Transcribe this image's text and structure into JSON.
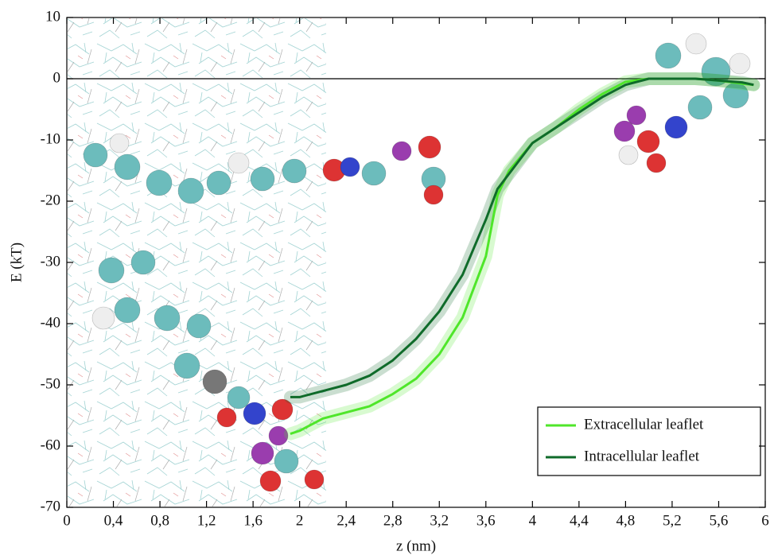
{
  "chart_data": {
    "type": "line",
    "x_label": "z (nm)",
    "y_label": "E (kT)",
    "x": [
      1.92,
      2.0,
      2.2,
      2.4,
      2.6,
      2.8,
      3.0,
      3.2,
      3.4,
      3.6,
      3.7,
      3.8,
      4.0,
      4.2,
      4.4,
      4.6,
      4.8,
      5.0,
      5.2,
      5.4,
      5.6,
      5.8,
      5.9
    ],
    "series": [
      {
        "name": "Extracellular leaflet",
        "color": "#4fe62a",
        "values": [
          -58,
          -57.5,
          -55.5,
          -54.5,
          -53.5,
          -51.5,
          -49,
          -45,
          -39,
          -29,
          -19,
          -15,
          -10.5,
          -8,
          -5,
          -2.5,
          -0.5,
          0,
          0,
          0,
          -0.3,
          -0.8,
          -1
        ]
      },
      {
        "name": "Intracellular leaflet",
        "color": "#0f6b2a",
        "values": [
          -52,
          -52,
          -51,
          -50,
          -48.5,
          -46,
          -42.5,
          -38,
          -32,
          -23,
          -18,
          -15.5,
          -10.5,
          -8,
          -5.5,
          -3,
          -1,
          0,
          0,
          0,
          -0.3,
          -0.6,
          -1
        ]
      }
    ],
    "reference_line": 0,
    "xlim": [
      0,
      6
    ],
    "xticks": [
      0,
      {
        "value": 0.4,
        "label": "0,4"
      },
      {
        "value": 0.8,
        "label": "0,8"
      },
      {
        "value": 1.2,
        "label": "1,2"
      },
      {
        "value": 1.6,
        "label": "1,6"
      },
      2,
      {
        "value": 2.4,
        "label": "2,4"
      },
      {
        "value": 2.8,
        "label": "2,8"
      },
      {
        "value": 3.2,
        "label": "3,2"
      },
      {
        "value": 3.6,
        "label": "3,6"
      },
      4,
      {
        "value": 4.4,
        "label": "4,4"
      },
      {
        "value": 4.8,
        "label": "4,8"
      },
      {
        "value": 5.2,
        "label": "5,2"
      },
      {
        "value": 5.6,
        "label": "5,6"
      },
      6
    ],
    "ylim": [
      -70,
      10
    ],
    "yticks": [
      -70,
      -60,
      -50,
      -40,
      -30,
      -20,
      -10,
      0,
      10
    ],
    "legend": "lower right"
  }
}
